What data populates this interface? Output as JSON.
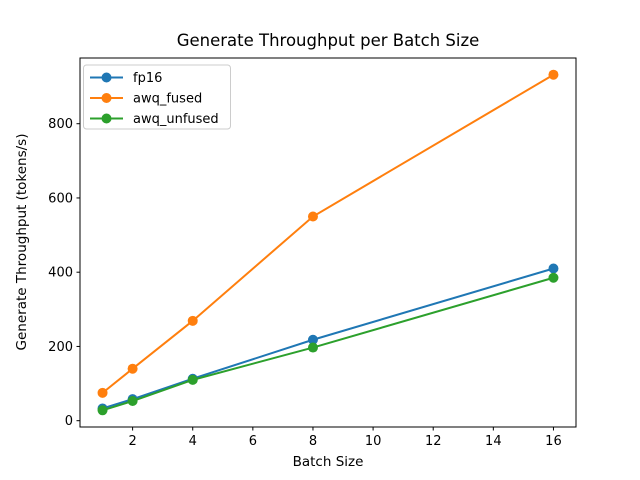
{
  "chart_data": {
    "type": "line",
    "title": "Generate Throughput per Batch Size",
    "xlabel": "Batch Size",
    "ylabel": "Generate Throughput (tokens/s)",
    "x": [
      1,
      2,
      4,
      8,
      16
    ],
    "series": [
      {
        "name": "fp16",
        "color": "#1f77b4",
        "values": [
          33,
          58,
          113,
          218,
          410
        ]
      },
      {
        "name": "awq_fused",
        "color": "#ff7f0e",
        "values": [
          75,
          140,
          269,
          550,
          932
        ]
      },
      {
        "name": "awq_unfused",
        "color": "#2ca02c",
        "values": [
          28,
          53,
          110,
          197,
          385
        ]
      }
    ],
    "xticks": [
      2,
      4,
      6,
      8,
      10,
      12,
      14,
      16
    ],
    "yticks": [
      0,
      200,
      400,
      600,
      800
    ],
    "xlim": [
      0.25,
      16.75
    ],
    "ylim": [
      -17,
      977
    ],
    "grid": false,
    "legend_position": "upper left",
    "marker": "o",
    "line_width": 2,
    "marker_radius": 5,
    "spine_color": "#000000",
    "legend_edge_color": "#cccccc",
    "background_color": "#ffffff"
  }
}
